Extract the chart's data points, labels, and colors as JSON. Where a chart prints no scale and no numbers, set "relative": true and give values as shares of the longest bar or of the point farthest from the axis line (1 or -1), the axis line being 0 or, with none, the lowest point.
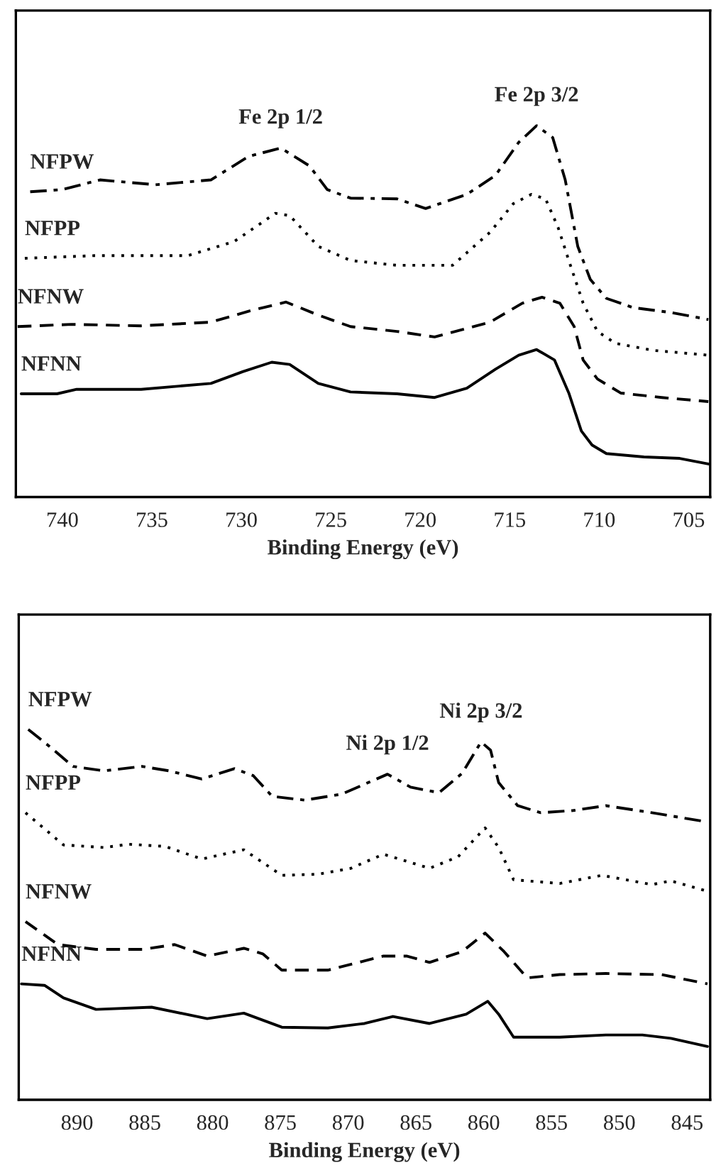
{
  "chart_data": [
    {
      "type": "line",
      "relative": true,
      "xlabel": "Binding Energy (eV)",
      "xlim": [
        742.6,
        703.8
      ],
      "xticks": [
        740,
        735,
        730,
        725,
        720,
        715,
        710,
        705
      ],
      "tick_labels": "x",
      "legend": false,
      "grid": false,
      "annotations": [
        {
          "text": "Fe 2p 1/2",
          "x": 727.8,
          "y": 0.94
        },
        {
          "text": "Fe 2p 3/2",
          "x": 713.5,
          "y": 1.0
        }
      ],
      "series": [
        {
          "name": "NFPW",
          "color": "#000000",
          "line_style": "dashdot",
          "x": [
            741.8,
            740,
            737.9,
            734.8,
            731.7,
            729.6,
            727.8,
            726.2,
            725.2,
            723.9,
            721.3,
            719.7,
            717.4,
            715.8,
            714.5,
            713.5,
            712.6,
            711.9,
            711.2,
            710.5,
            709.6,
            708.1,
            706.0,
            703.9
          ],
          "values": [
            0.822,
            0.828,
            0.854,
            0.841,
            0.854,
            0.917,
            0.94,
            0.892,
            0.828,
            0.805,
            0.803,
            0.777,
            0.815,
            0.866,
            0.955,
            1.0,
            0.968,
            0.854,
            0.675,
            0.586,
            0.535,
            0.51,
            0.497,
            0.478
          ]
        },
        {
          "name": "NFPP",
          "color": "#000000",
          "line_style": "dotted",
          "x": [
            742.1,
            738.2,
            733.0,
            730.4,
            728.1,
            727.3,
            725.7,
            723.9,
            721.3,
            718.2,
            716.1,
            714.8,
            713.8,
            713.0,
            712.3,
            711.7,
            710.9,
            710.1,
            709.1,
            707.0,
            703.9
          ],
          "values": [
            0.643,
            0.65,
            0.65,
            0.688,
            0.764,
            0.758,
            0.675,
            0.637,
            0.624,
            0.624,
            0.713,
            0.79,
            0.815,
            0.803,
            0.726,
            0.637,
            0.522,
            0.446,
            0.414,
            0.395,
            0.382
          ]
        },
        {
          "name": "NFNW",
          "color": "#000000",
          "line_style": "dashed",
          "x": [
            742.5,
            739.5,
            735.6,
            731.7,
            729.4,
            727.5,
            725.7,
            723.9,
            721.3,
            719.2,
            716.1,
            714.3,
            713.2,
            712.2,
            711.4,
            710.9,
            710.1,
            708.8,
            706.5,
            703.9
          ],
          "values": [
            0.459,
            0.465,
            0.461,
            0.471,
            0.503,
            0.525,
            0.49,
            0.459,
            0.446,
            0.431,
            0.471,
            0.522,
            0.538,
            0.522,
            0.459,
            0.369,
            0.318,
            0.28,
            0.268,
            0.257
          ]
        },
        {
          "name": "NFNN",
          "color": "#000000",
          "line_style": "solid",
          "x": [
            742.3,
            740.3,
            739.2,
            735.6,
            731.7,
            729.9,
            728.3,
            727.3,
            725.7,
            723.9,
            721.3,
            719.2,
            717.4,
            715.8,
            714.5,
            713.5,
            712.5,
            711.7,
            711.0,
            710.4,
            709.6,
            707.5,
            705.5,
            703.9
          ],
          "values": [
            0.278,
            0.278,
            0.29,
            0.29,
            0.306,
            0.338,
            0.363,
            0.357,
            0.306,
            0.283,
            0.278,
            0.268,
            0.293,
            0.344,
            0.382,
            0.397,
            0.369,
            0.28,
            0.178,
            0.14,
            0.117,
            0.108,
            0.104,
            0.089
          ]
        }
      ]
    },
    {
      "type": "line",
      "relative": true,
      "xlabel": "Binding Energy (eV)",
      "xlim": [
        894.3,
        843.3
      ],
      "xticks": [
        890,
        885,
        880,
        875,
        870,
        865,
        860,
        855,
        850,
        845
      ],
      "tick_labels": "x",
      "legend": false,
      "grid": false,
      "annotations": [
        {
          "text": "Ni 2p 1/2",
          "x": 867.1,
          "y": 0.879
        },
        {
          "text": "Ni 2p 3/2",
          "x": 860.2,
          "y": 0.966
        }
      ],
      "series": [
        {
          "name": "NFPW",
          "color": "#000000",
          "line_style": "dashdot",
          "x": [
            893.6,
            892.1,
            890.3,
            888.0,
            885.2,
            883.2,
            880.8,
            878.4,
            877.0,
            875.6,
            873.2,
            870.5,
            868.1,
            867.1,
            865.4,
            863.3,
            861.6,
            860.2,
            859.5,
            858.9,
            857.5,
            855.8,
            853.4,
            851.0,
            847.6,
            843.5
          ],
          "values": [
            1.0,
            0.956,
            0.9,
            0.888,
            0.9,
            0.888,
            0.866,
            0.894,
            0.875,
            0.819,
            0.809,
            0.825,
            0.863,
            0.879,
            0.844,
            0.829,
            0.881,
            0.966,
            0.944,
            0.856,
            0.794,
            0.775,
            0.781,
            0.794,
            0.775,
            0.75
          ]
        },
        {
          "name": "NFPP",
          "color": "#000000",
          "line_style": "dotted",
          "x": [
            893.8,
            891.0,
            888.0,
            886.2,
            883.5,
            880.8,
            877.7,
            874.9,
            872.2,
            869.8,
            867.4,
            865.7,
            864.0,
            861.9,
            859.9,
            858.9,
            857.8,
            854.4,
            851.3,
            847.6,
            846.2,
            843.5
          ],
          "values": [
            0.775,
            0.688,
            0.681,
            0.69,
            0.684,
            0.65,
            0.675,
            0.606,
            0.609,
            0.625,
            0.663,
            0.644,
            0.625,
            0.656,
            0.734,
            0.681,
            0.594,
            0.584,
            0.606,
            0.581,
            0.591,
            0.563
          ]
        },
        {
          "name": "NFNW",
          "color": "#000000",
          "line_style": "dashed",
          "x": [
            893.8,
            891.4,
            888.6,
            885.2,
            882.8,
            880.4,
            877.7,
            876.3,
            874.9,
            871.5,
            867.4,
            865.7,
            864.0,
            861.6,
            859.9,
            858.5,
            856.8,
            854.4,
            851.0,
            846.9,
            843.5
          ],
          "values": [
            0.481,
            0.419,
            0.406,
            0.406,
            0.419,
            0.388,
            0.409,
            0.394,
            0.35,
            0.35,
            0.388,
            0.388,
            0.371,
            0.4,
            0.45,
            0.4,
            0.329,
            0.338,
            0.341,
            0.338,
            0.313
          ]
        },
        {
          "name": "NFNN",
          "color": "#000000",
          "line_style": "solid",
          "x": [
            894.1,
            892.4,
            891.0,
            888.6,
            884.5,
            880.4,
            877.7,
            874.9,
            871.5,
            868.8,
            866.7,
            864.0,
            861.3,
            859.7,
            858.9,
            857.8,
            854.4,
            851.0,
            848.3,
            846.2,
            843.5
          ],
          "values": [
            0.313,
            0.309,
            0.275,
            0.244,
            0.25,
            0.219,
            0.234,
            0.196,
            0.194,
            0.206,
            0.225,
            0.206,
            0.231,
            0.266,
            0.231,
            0.169,
            0.169,
            0.175,
            0.175,
            0.166,
            0.144
          ]
        }
      ]
    }
  ]
}
